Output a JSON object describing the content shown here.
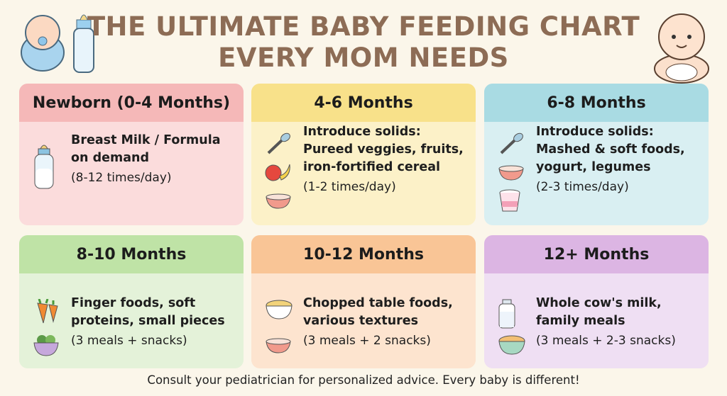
{
  "title": {
    "line1": "THE ULTIMATE BABY FEEDING CHART",
    "line2": "EVERY MOM NEEDS"
  },
  "cards": [
    {
      "heading": "Newborn (0-4 Months)",
      "lines": [
        "Breast Milk / Formula",
        "on demand"
      ],
      "note": "(8-12 times/day)",
      "header_color": "#f5b8b8",
      "body_color": "#fbdcdc",
      "icons": [
        "baby-bottle-icon"
      ]
    },
    {
      "heading": "4-6 Months",
      "lines": [
        "Introduce solids:",
        "Pureed veggies, fruits,",
        "iron-fortified cereal"
      ],
      "note": "(1-2 times/day)",
      "header_color": "#f8e18a",
      "body_color": "#fcf1c8",
      "icons": [
        "spoon-icon",
        "apple-banana-icon",
        "bowl-icon"
      ]
    },
    {
      "heading": "6-8 Months",
      "lines": [
        "Introduce solids:",
        "Mashed & soft foods,",
        "yogurt, legumes"
      ],
      "note": "(2-3 times/day)",
      "header_color": "#a9dbe3",
      "body_color": "#d9eff2",
      "icons": [
        "spoon-icon",
        "bowl-icon",
        "yogurt-icon"
      ]
    },
    {
      "heading": "8-10 Months",
      "lines": [
        "Finger foods, soft",
        "proteins, small pieces"
      ],
      "note": "(3 meals + snacks)",
      "header_color": "#bfe3a6",
      "body_color": "#e4f2d9",
      "icons": [
        "carrot-icon",
        "veggie-bowl-icon"
      ]
    },
    {
      "heading": "10-12 Months",
      "lines": [
        "Chopped table foods,",
        "various textures"
      ],
      "note": "(3 meals + 2 snacks)",
      "header_color": "#f9c596",
      "body_color": "#fde4cf",
      "icons": [
        "food-bowl-icon",
        "bowl-icon"
      ]
    },
    {
      "heading": "12+ Months",
      "lines": [
        "Whole cow's milk,",
        "family meals"
      ],
      "note": "(3 meals + 2-3 snacks)",
      "header_color": "#dcb5e3",
      "body_color": "#efdff3",
      "icons": [
        "milk-bottle-icon",
        "cereal-bowl-icon"
      ]
    }
  ],
  "footer": "Consult your pediatrician for personalized advice. Every baby is different!"
}
